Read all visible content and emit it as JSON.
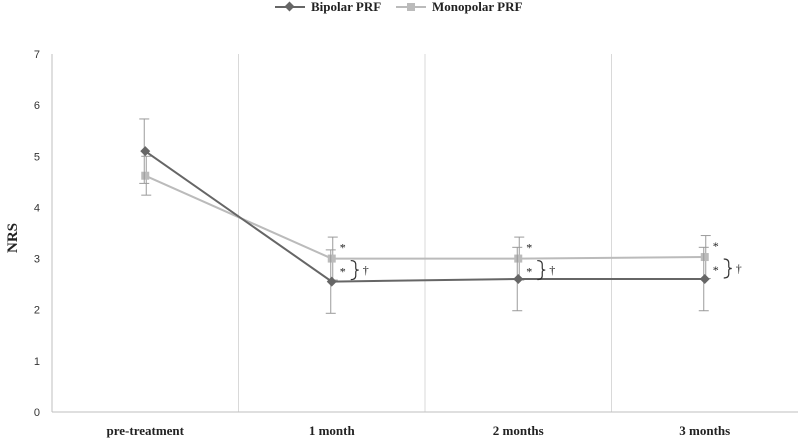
{
  "chart_data": {
    "type": "line",
    "xlabel": "",
    "ylabel": "NRS",
    "ylim": [
      0,
      7
    ],
    "yticks": [
      "0",
      "1",
      "2",
      "3",
      "4",
      "5",
      "6",
      "7"
    ],
    "categories": [
      "pre-treatment",
      "1 month",
      "2 months",
      "3 months"
    ],
    "legend_position": "top",
    "series": [
      {
        "name": "Bipolar PRF",
        "color": "#666666",
        "marker": "diamond",
        "values": [
          5.1,
          2.55,
          2.6,
          2.6
        ],
        "error": [
          0.63,
          0.62,
          0.62,
          0.62
        ]
      },
      {
        "name": "Monopolar PRF",
        "color": "#bbbbbb",
        "marker": "square",
        "values": [
          4.62,
          3.0,
          3.0,
          3.03
        ],
        "error": [
          0.38,
          0.42,
          0.42,
          0.42
        ]
      }
    ],
    "annotations": {
      "monopolar_marks": [
        "",
        "*",
        "*",
        "*"
      ],
      "bipolar_marks": [
        "",
        "*",
        "*",
        "*"
      ],
      "between_marks": [
        "",
        "†",
        "†",
        "†"
      ]
    }
  }
}
